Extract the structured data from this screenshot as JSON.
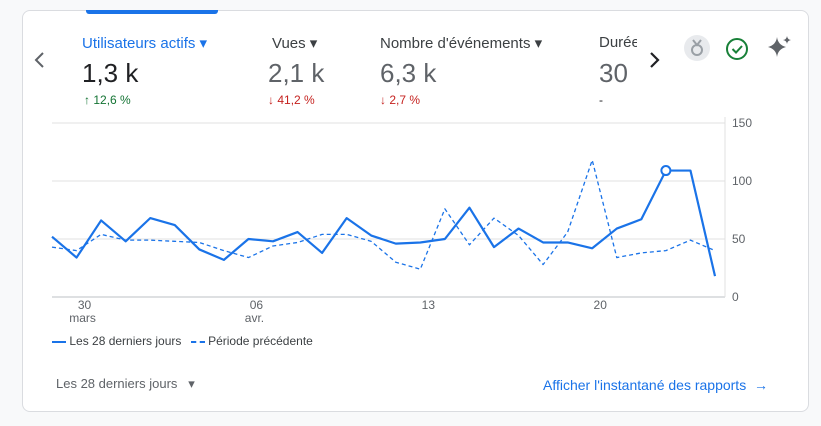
{
  "tabs": [
    {
      "label": "Utilisateurs actifs",
      "value": "1,3 k",
      "change": "12,6 %",
      "direction": "up"
    },
    {
      "label": "Vues",
      "value": "2,1 k",
      "change": "41,2 %",
      "direction": "down"
    },
    {
      "label": "Nombre d'événements",
      "value": "6,3 k",
      "change": "2,7 %",
      "direction": "down"
    },
    {
      "label": "Durée",
      "value": "30",
      "change": "-",
      "direction": "none"
    }
  ],
  "chart_data": {
    "type": "line",
    "categories": [
      null,
      "30",
      null,
      null,
      null,
      null,
      null,
      null,
      "06",
      null,
      null,
      null,
      null,
      null,
      null,
      "13",
      null,
      null,
      null,
      null,
      null,
      null,
      "20",
      null,
      null,
      null,
      null,
      null
    ],
    "month_labels": [
      null,
      "mars",
      null,
      null,
      null,
      null,
      null,
      null,
      "avr.",
      null,
      null,
      null,
      null,
      null,
      null,
      null,
      null,
      null,
      null,
      null,
      null,
      null,
      null,
      null,
      null,
      null,
      null,
      null
    ],
    "series": [
      {
        "name": "Les 28 derniers jours",
        "color": "#1a73e8",
        "dashed": false,
        "values": [
          52,
          34,
          66,
          48,
          68,
          62,
          41,
          32,
          50,
          48,
          56,
          38,
          68,
          53,
          46,
          47,
          50,
          77,
          43,
          59,
          47,
          47,
          42,
          59,
          67,
          109,
          109,
          18
        ]
      },
      {
        "name": "Période précédente",
        "color": "#1a73e8",
        "dashed": true,
        "values": [
          43,
          40,
          54,
          49,
          49,
          48,
          47,
          40,
          34,
          44,
          47,
          54,
          54,
          48,
          30,
          24,
          76,
          45,
          68,
          53,
          28,
          56,
          118,
          34,
          38,
          40,
          49,
          40
        ]
      }
    ],
    "ylim": [
      0,
      150
    ],
    "yticks": [
      0,
      50,
      100,
      150
    ],
    "grid": true
  },
  "footer": {
    "period": "Les 28 derniers jours",
    "link": "Afficher l'instantané des rapports"
  }
}
